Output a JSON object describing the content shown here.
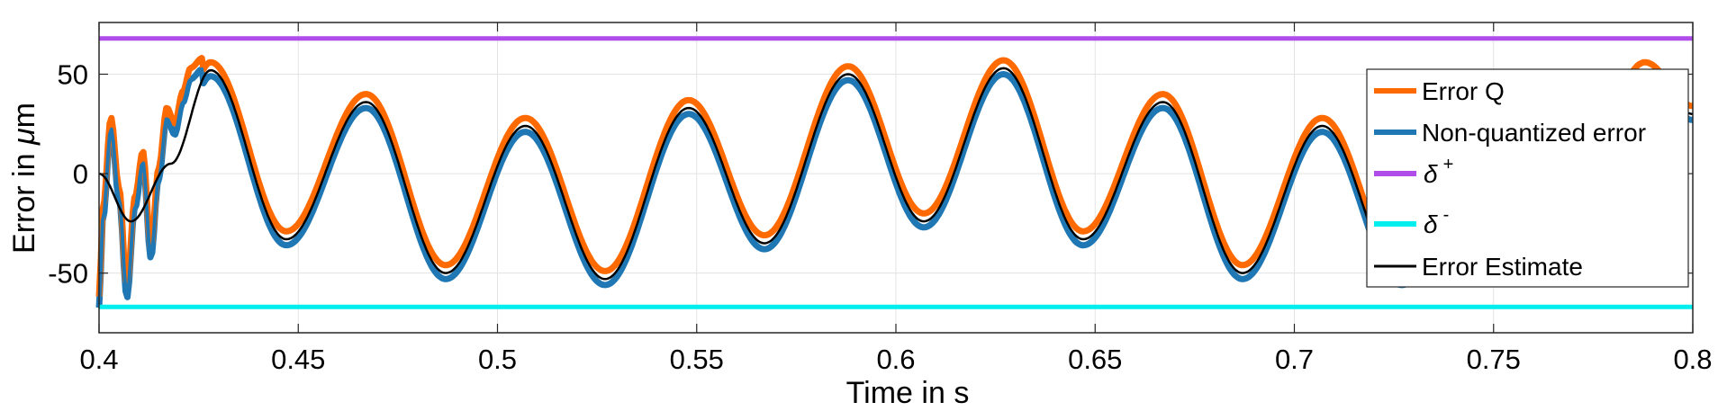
{
  "chart_data": {
    "type": "line",
    "title": "",
    "xlabel": "Time in s",
    "ylabel_prefix": "Error in ",
    "ylabel_symbol": "μ",
    "ylabel_suffix": "m",
    "xlim": [
      0.4,
      0.8
    ],
    "ylim": [
      -80,
      76
    ],
    "grid": true,
    "legend_position": "right",
    "xticks": [
      0.4,
      0.45,
      0.5,
      0.55,
      0.6,
      0.65,
      0.7,
      0.75,
      0.8
    ],
    "xtick_labels": [
      "0.4",
      "0.45",
      "0.5",
      "0.55",
      "0.6",
      "0.65",
      "0.7",
      "0.75",
      "0.8"
    ],
    "yticks": [
      -50,
      0,
      50
    ],
    "ytick_labels": [
      "-50",
      "0",
      "50"
    ],
    "colors": {
      "error_q": "#ff6a00",
      "non_quantized": "#1f77b4",
      "delta_plus": "#b04dea",
      "delta_minus": "#00eeee",
      "estimate": "#000000"
    },
    "estimate_curve": {
      "x": [
        0.4,
        0.408,
        0.418,
        0.428,
        0.447,
        0.467,
        0.487,
        0.507,
        0.527,
        0.548,
        0.567,
        0.588,
        0.607,
        0.627,
        0.647,
        0.667,
        0.687,
        0.707,
        0.727,
        0.747,
        0.767,
        0.788,
        0.8
      ],
      "y": [
        0,
        -24,
        5,
        52,
        -33,
        36,
        -50,
        24,
        -53,
        33,
        -35,
        50,
        -24,
        53,
        -33,
        36,
        -50,
        24,
        -53,
        33,
        -35,
        52,
        30
      ]
    },
    "early_transient": {
      "x": [
        0.4,
        0.401,
        0.403,
        0.405,
        0.407,
        0.409,
        0.411,
        0.413,
        0.415,
        0.417,
        0.419,
        0.421,
        0.423,
        0.426
      ],
      "y": [
        -65,
        -20,
        25,
        -10,
        -60,
        -15,
        8,
        -40,
        0,
        30,
        22,
        38,
        50,
        55
      ]
    },
    "series_offsets": {
      "error_q": 4,
      "non_quantized": -3
    },
    "delta_plus": 68,
    "delta_minus": -67,
    "legend": {
      "error_q": "Error Q",
      "non_quantized": "Non-quantized error",
      "delta_plus_symbol": "δ",
      "delta_plus_sup": "+",
      "delta_minus_symbol": "δ",
      "delta_minus_sup": "-",
      "estimate": "Error Estimate"
    }
  }
}
